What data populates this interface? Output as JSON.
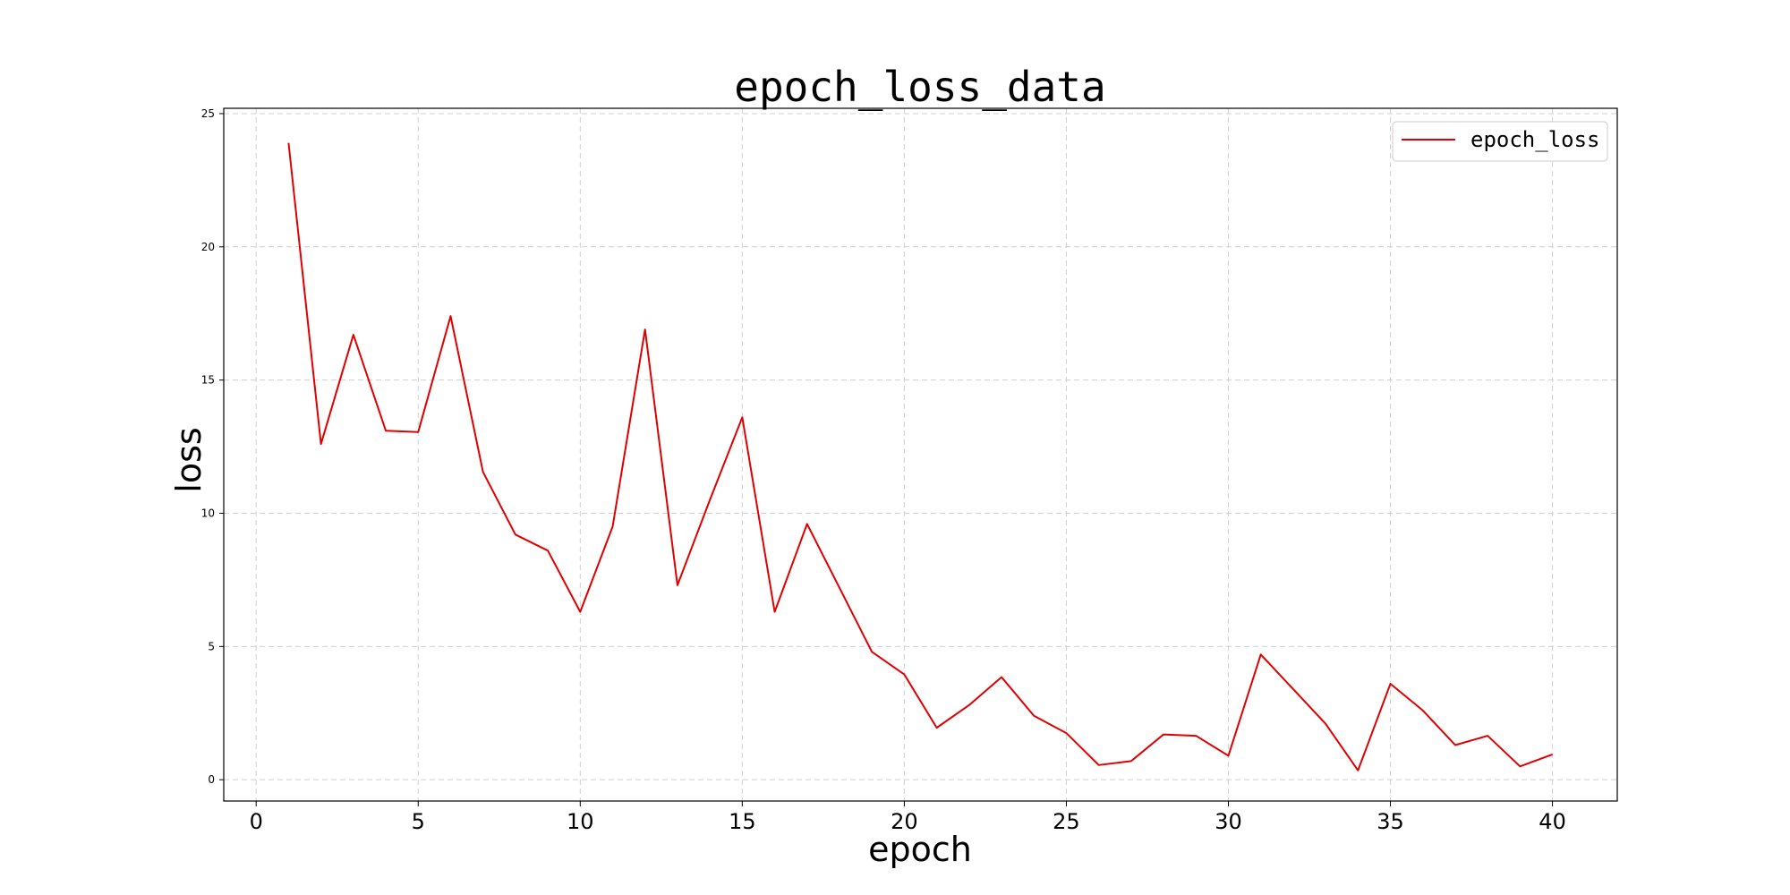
{
  "chart_data": {
    "type": "line",
    "title": "epoch_loss_data",
    "xlabel": "epoch",
    "ylabel": "loss",
    "xlim": [
      -1,
      42
    ],
    "ylim": [
      -0.8,
      25.2
    ],
    "xticks": [
      0,
      5,
      10,
      15,
      20,
      25,
      30,
      35,
      40
    ],
    "yticks": [
      0,
      5,
      10,
      15,
      20,
      25
    ],
    "grid": true,
    "legend_position": "top-right",
    "x": [
      1,
      2,
      3,
      4,
      5,
      6,
      7,
      8,
      9,
      10,
      11,
      12,
      13,
      14,
      15,
      16,
      17,
      18,
      19,
      20,
      21,
      22,
      23,
      24,
      25,
      26,
      27,
      28,
      29,
      30,
      31,
      32,
      33,
      34,
      35,
      36,
      37,
      38,
      39,
      40
    ],
    "series": [
      {
        "name": "epoch_loss",
        "color": "#e00000",
        "values": [
          23.9,
          12.6,
          16.7,
          13.1,
          13.05,
          17.4,
          11.55,
          9.2,
          8.6,
          6.3,
          9.5,
          16.9,
          7.3,
          10.5,
          13.6,
          6.3,
          9.6,
          7.2,
          4.8,
          3.95,
          1.95,
          2.8,
          3.85,
          2.4,
          1.75,
          0.55,
          0.7,
          1.7,
          1.65,
          0.9,
          4.7,
          3.4,
          2.1,
          0.35,
          3.6,
          2.6,
          1.3,
          1.65,
          0.5,
          0.95
        ]
      }
    ]
  }
}
